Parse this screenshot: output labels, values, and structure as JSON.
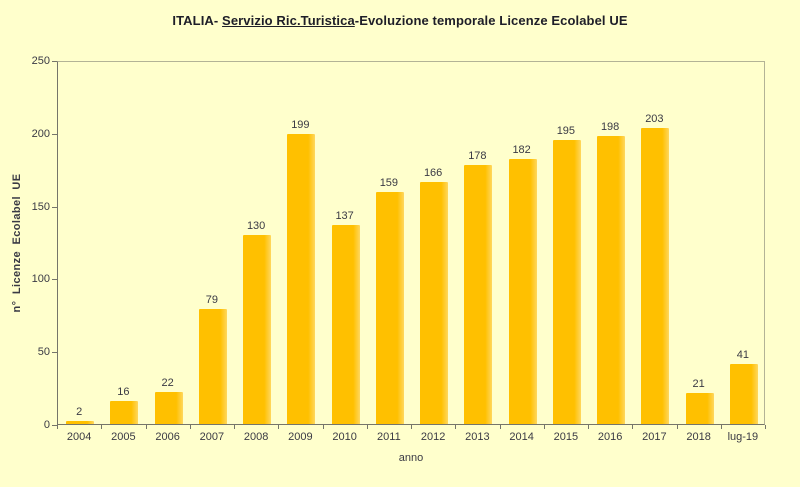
{
  "title": {
    "prefix": "ITALIA- ",
    "underlined": "Servizio Ric.Turistica",
    "suffix": "-Evoluzione temporale Licenze Ecolabel UE"
  },
  "chart_data": {
    "type": "bar",
    "title": "ITALIA- Servizio Ric.Turistica-Evoluzione temporale Licenze Ecolabel UE",
    "categories": [
      "2004",
      "2005",
      "2006",
      "2007",
      "2008",
      "2009",
      "2010",
      "2011",
      "2012",
      "2013",
      "2014",
      "2015",
      "2016",
      "2017",
      "2018",
      "lug-19"
    ],
    "values": [
      2,
      16,
      22,
      79,
      130,
      199,
      137,
      159,
      166,
      178,
      182,
      195,
      198,
      203,
      21,
      41
    ],
    "xlabel": "anno",
    "ylabel": "n° Licenze Ecolabel UE",
    "ylim": [
      0,
      250
    ],
    "y_ticks": [
      0,
      50,
      100,
      150,
      200,
      250
    ],
    "grid": false,
    "legend": false,
    "colors": {
      "background": "#FFFFCC",
      "bar": "#FFC000",
      "bar_highlight": "#FFD75E",
      "axis": "#75756A",
      "plot_border": "#B3B396",
      "text": "#3A3A44",
      "title_text": "#1E1E28"
    }
  }
}
